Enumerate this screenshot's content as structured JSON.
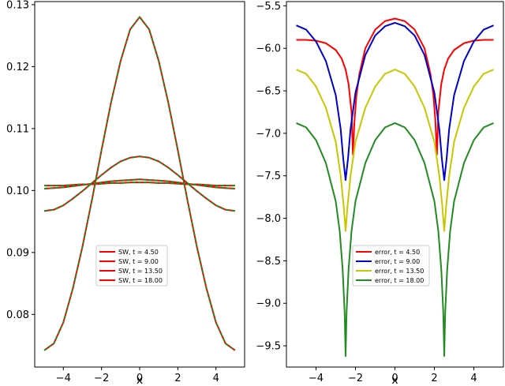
{
  "chart_data": [
    {
      "type": "line",
      "title": "",
      "xlabel": "x",
      "ylabel": "",
      "xlim": [
        -5.5,
        5.5
      ],
      "ylim": [
        0.0715,
        0.1305
      ],
      "xticks": [
        -4,
        -2,
        0,
        2,
        4
      ],
      "yticks": [
        0.08,
        0.09,
        0.1,
        0.11,
        0.12,
        0.13
      ],
      "ytick_labels": [
        "0.08",
        "0.09",
        "0.10",
        "0.11",
        "0.12",
        "0.13"
      ],
      "grid": false,
      "legend_position": "lower-center",
      "x": [
        -5.0,
        -4.5,
        -4.0,
        -3.5,
        -3.0,
        -2.5,
        -2.0,
        -1.5,
        -1.0,
        -0.5,
        0.0,
        0.5,
        1.0,
        1.5,
        2.0,
        2.5,
        3.0,
        3.5,
        4.0,
        4.5,
        5.0
      ],
      "series": [
        {
          "name": "SW, t = 4.50",
          "color": "#ff0000",
          "overlay_color": "#228b22",
          "values": [
            0.0742,
            0.0753,
            0.0787,
            0.0842,
            0.0909,
            0.0985,
            0.1065,
            0.1142,
            0.1209,
            0.126,
            0.128,
            0.126,
            0.1209,
            0.1142,
            0.1065,
            0.0985,
            0.0909,
            0.0842,
            0.0787,
            0.0753,
            0.0742
          ]
        },
        {
          "name": "SW, t = 9.00",
          "color": "#ff0000",
          "overlay_color": "#228b22",
          "values": [
            0.0967,
            0.0969,
            0.0976,
            0.0987,
            0.0999,
            0.1012,
            0.1025,
            0.1037,
            0.1047,
            0.1053,
            0.1055,
            0.1053,
            0.1047,
            0.1037,
            0.1025,
            0.1012,
            0.0999,
            0.0987,
            0.0976,
            0.0969,
            0.0967
          ]
        },
        {
          "name": "SW, t = 13.50",
          "color": "#ff0000",
          "overlay_color": "#228b22",
          "values": [
            0.1003,
            0.1004,
            0.1005,
            0.1007,
            0.1009,
            0.1011,
            0.1013,
            0.1015,
            0.1016,
            0.1017,
            0.1018,
            0.1017,
            0.1016,
            0.1015,
            0.1013,
            0.1011,
            0.1009,
            0.1007,
            0.1005,
            0.1004,
            0.1003
          ]
        },
        {
          "name": "SW, t = 18.00",
          "color": "#ff0000",
          "overlay_color": "#228b22",
          "values": [
            0.1008,
            0.1008,
            0.1008,
            0.1009,
            0.101,
            0.101,
            0.1011,
            0.1012,
            0.1012,
            0.1013,
            0.1013,
            0.1013,
            0.1012,
            0.1012,
            0.1011,
            0.101,
            0.101,
            0.1009,
            0.1008,
            0.1008,
            0.1008
          ]
        }
      ]
    },
    {
      "type": "line",
      "title": "",
      "xlabel": "x",
      "ylabel": "",
      "xlim": [
        -5.5,
        5.5
      ],
      "ylim": [
        -9.75,
        -5.45
      ],
      "xticks": [
        -4,
        -2,
        0,
        2,
        4
      ],
      "yticks": [
        -9.5,
        -9.0,
        -8.5,
        -8.0,
        -7.5,
        -7.0,
        -6.5,
        -6.0,
        -5.5
      ],
      "ytick_labels": [
        "−9.5",
        "−9.0",
        "−8.5",
        "−8.0",
        "−7.5",
        "−7.0",
        "−6.5",
        "−6.0",
        "−5.5"
      ],
      "grid": false,
      "legend_position": "lower-center",
      "series": [
        {
          "name": "error, t = 4.50",
          "color": "#ff0000",
          "x": [
            -5.0,
            -4.5,
            -4.0,
            -3.5,
            -3.0,
            -2.7,
            -2.5,
            -2.35,
            -2.2,
            -2.13,
            -2.05,
            -1.95,
            -1.8,
            -1.5,
            -1.0,
            -0.5,
            0.0,
            0.5,
            1.0,
            1.5,
            1.8,
            1.95,
            2.05,
            2.13,
            2.2,
            2.35,
            2.5,
            2.7,
            3.0,
            3.5,
            4.0,
            4.5,
            5.0
          ],
          "values": [
            -5.9,
            -5.9,
            -5.91,
            -5.94,
            -6.02,
            -6.12,
            -6.25,
            -6.42,
            -6.75,
            -7.25,
            -6.85,
            -6.55,
            -6.3,
            -6.0,
            -5.78,
            -5.68,
            -5.65,
            -5.68,
            -5.78,
            -6.0,
            -6.3,
            -6.55,
            -6.85,
            -7.25,
            -6.75,
            -6.42,
            -6.25,
            -6.12,
            -6.02,
            -5.94,
            -5.91,
            -5.9,
            -5.9
          ]
        },
        {
          "name": "error, t = 9.00",
          "color": "#0000cd",
          "x": [
            -5.0,
            -4.5,
            -4.0,
            -3.5,
            -3.0,
            -2.75,
            -2.62,
            -2.5,
            -2.38,
            -2.25,
            -2.0,
            -1.5,
            -1.0,
            -0.5,
            0.0,
            0.5,
            1.0,
            1.5,
            2.0,
            2.25,
            2.38,
            2.5,
            2.62,
            2.75,
            3.0,
            3.5,
            4.0,
            4.5,
            5.0
          ],
          "values": [
            -5.73,
            -5.78,
            -5.92,
            -6.15,
            -6.55,
            -6.95,
            -7.3,
            -7.55,
            -7.3,
            -6.95,
            -6.52,
            -6.08,
            -5.85,
            -5.74,
            -5.7,
            -5.74,
            -5.85,
            -6.08,
            -6.52,
            -6.95,
            -7.3,
            -7.55,
            -7.3,
            -6.95,
            -6.55,
            -6.15,
            -5.92,
            -5.78,
            -5.73
          ]
        },
        {
          "name": "error, t = 13.50",
          "color": "#c8c800",
          "x": [
            -5.0,
            -4.5,
            -4.0,
            -3.5,
            -3.0,
            -2.75,
            -2.6,
            -2.5,
            -2.4,
            -2.25,
            -2.0,
            -1.5,
            -1.0,
            -0.5,
            0.0,
            0.5,
            1.0,
            1.5,
            2.0,
            2.25,
            2.4,
            2.5,
            2.6,
            2.75,
            3.0,
            3.5,
            4.0,
            4.5,
            5.0
          ],
          "values": [
            -6.25,
            -6.3,
            -6.45,
            -6.7,
            -7.1,
            -7.5,
            -7.85,
            -8.15,
            -7.85,
            -7.5,
            -7.1,
            -6.7,
            -6.45,
            -6.3,
            -6.25,
            -6.3,
            -6.45,
            -6.7,
            -7.1,
            -7.5,
            -7.85,
            -8.15,
            -7.85,
            -7.5,
            -7.1,
            -6.7,
            -6.45,
            -6.3,
            -6.25
          ]
        },
        {
          "name": "error, t = 18.00",
          "color": "#228b22",
          "x": [
            -5.0,
            -4.5,
            -4.0,
            -3.5,
            -3.0,
            -2.8,
            -2.65,
            -2.55,
            -2.5,
            -2.45,
            -2.35,
            -2.2,
            -2.0,
            -1.5,
            -1.0,
            -0.5,
            0.0,
            0.5,
            1.0,
            1.5,
            2.0,
            2.2,
            2.35,
            2.45,
            2.5,
            2.55,
            2.65,
            2.8,
            3.0,
            3.5,
            4.0,
            4.5,
            5.0
          ],
          "values": [
            -6.88,
            -6.93,
            -7.08,
            -7.35,
            -7.8,
            -8.15,
            -8.6,
            -9.1,
            -9.62,
            -9.1,
            -8.6,
            -8.15,
            -7.8,
            -7.35,
            -7.08,
            -6.93,
            -6.88,
            -6.93,
            -7.08,
            -7.35,
            -7.8,
            -8.15,
            -8.6,
            -9.1,
            -9.62,
            -9.1,
            -8.6,
            -8.15,
            -7.8,
            -7.35,
            -7.08,
            -6.93,
            -6.88
          ]
        }
      ]
    }
  ]
}
